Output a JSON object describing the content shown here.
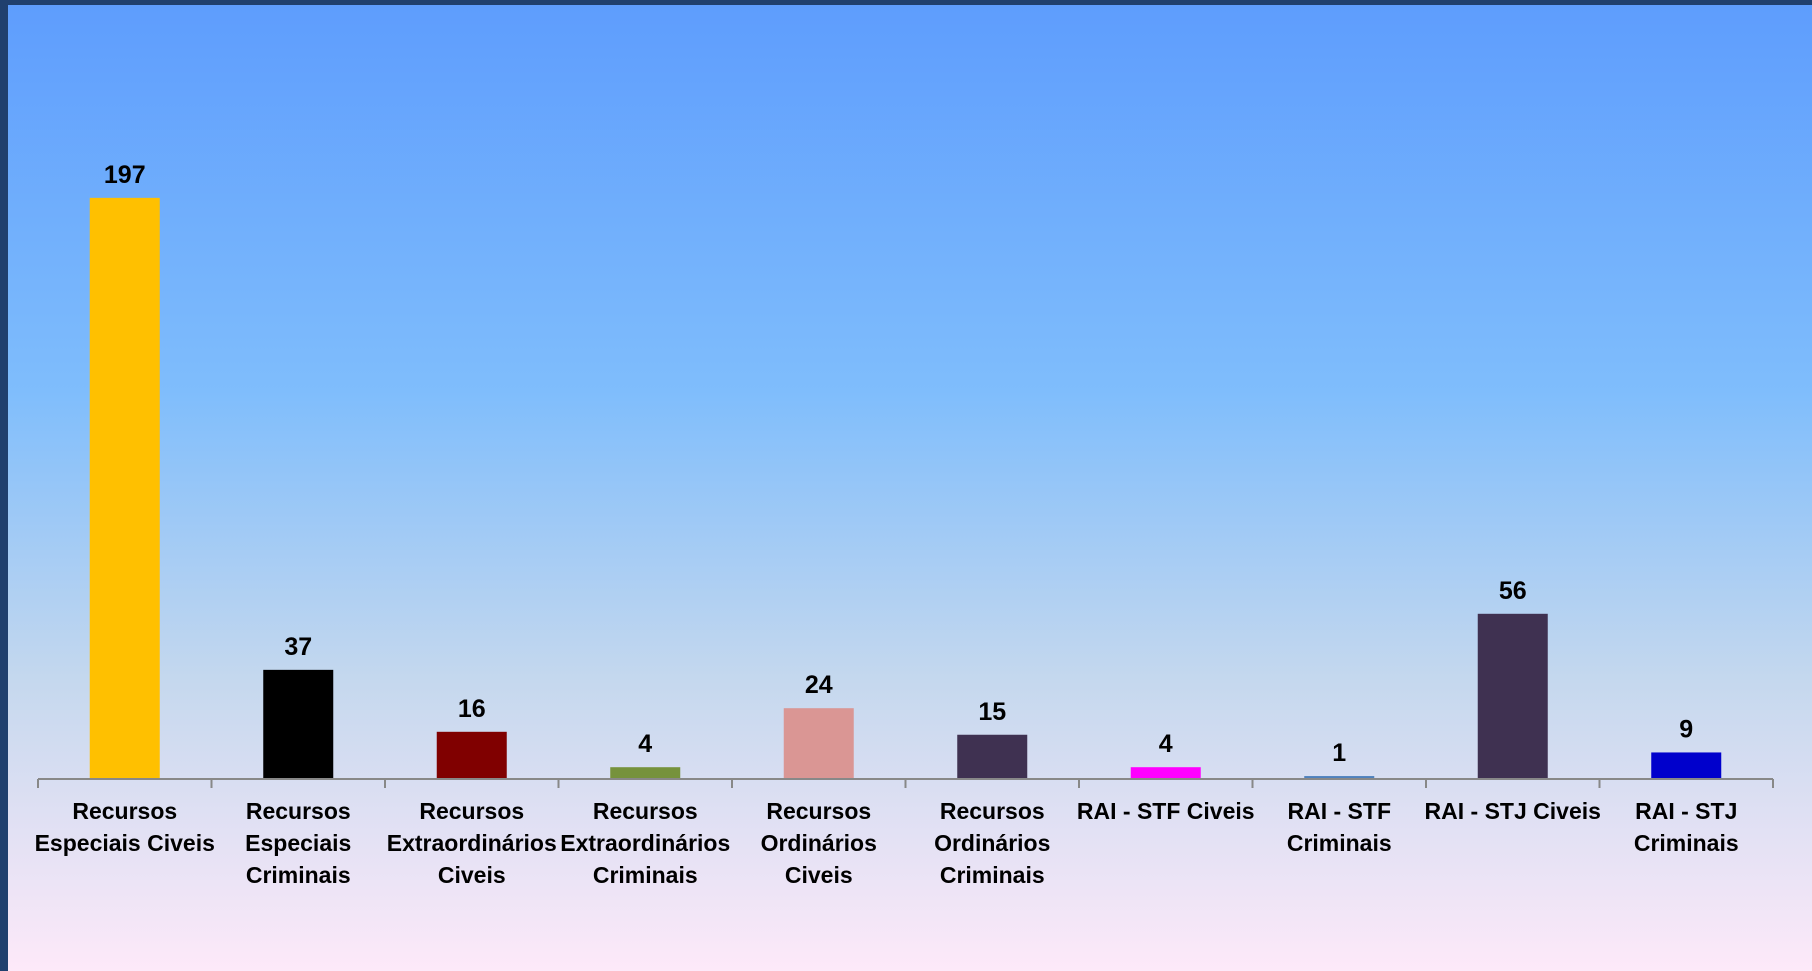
{
  "chart_data": {
    "type": "bar",
    "title": "",
    "xlabel": "",
    "ylabel": "",
    "categories": [
      [
        "Recursos",
        "Especiais Civeis"
      ],
      [
        "Recursos",
        "Especiais",
        "Criminais"
      ],
      [
        "Recursos",
        "Extraordinários",
        "Civeis"
      ],
      [
        "Recursos",
        "Extraordinários",
        "Criminais"
      ],
      [
        "Recursos",
        "Ordinários",
        "Civeis"
      ],
      [
        "Recursos",
        "Ordinários",
        "Criminais"
      ],
      [
        "RAI - STF Civeis"
      ],
      [
        "RAI - STF",
        "Criminais"
      ],
      [
        "RAI - STJ Civeis"
      ],
      [
        "RAI - STJ",
        "Criminais"
      ]
    ],
    "values": [
      197,
      37,
      16,
      4,
      24,
      15,
      4,
      1,
      56,
      9
    ],
    "colors": [
      "#ffc000",
      "#000000",
      "#800000",
      "#76923c",
      "#da9694",
      "#3f3151",
      "#ff00ff",
      "#4f81bd",
      "#3f3151",
      "#0000cc"
    ],
    "ylim": [
      0,
      200
    ],
    "grid": false,
    "legend": "none",
    "data_labels": true
  }
}
